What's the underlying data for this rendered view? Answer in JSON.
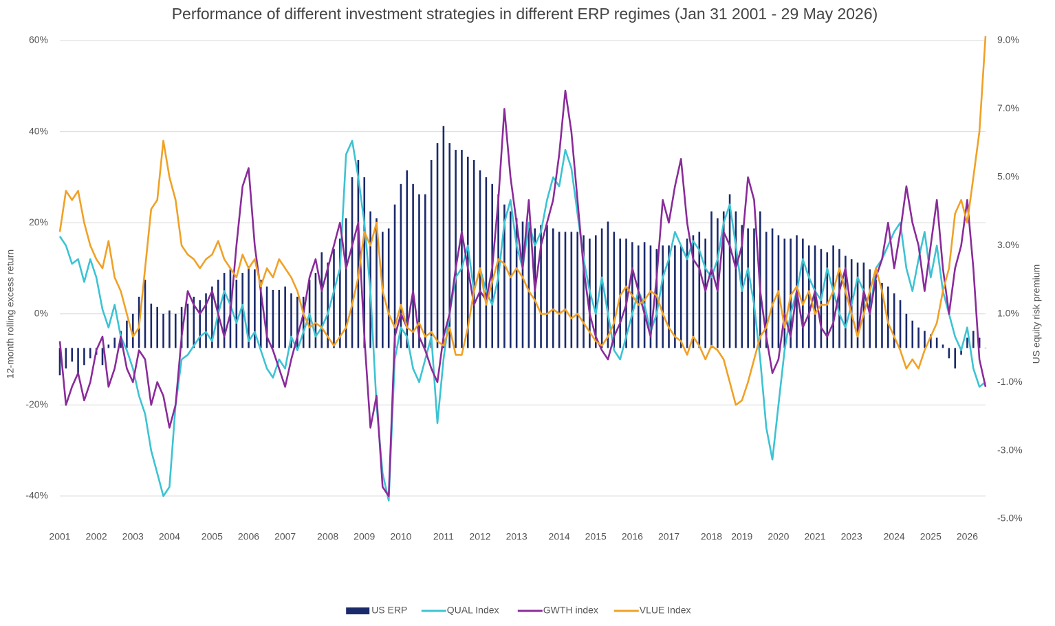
{
  "chart_data": {
    "type": "bar-line",
    "title": "Performance of different investment strategies in different ERP regimes (Jan 31 2001 - 29 May 2026)",
    "y_label": "12-month rolling excess return",
    "y2_label": "US equity risk premium",
    "ylim": [
      -45,
      60
    ],
    "yticks": [
      {
        "value": -40,
        "label": "-40%"
      },
      {
        "value": -20,
        "label": "-20%"
      },
      {
        "value": 0,
        "label": "0%"
      },
      {
        "value": 20,
        "label": "20%"
      },
      {
        "value": 40,
        "label": "40%"
      },
      {
        "value": 60,
        "label": "60%"
      }
    ],
    "y2lim": [
      -5,
      9
    ],
    "y2ticks": [
      {
        "value": -5,
        "label": "-5.0%"
      },
      {
        "value": -3,
        "label": "-3.0%"
      },
      {
        "value": -1,
        "label": "-1.0%"
      },
      {
        "value": 1,
        "label": "1.0%"
      },
      {
        "value": 3,
        "label": "3.0%"
      },
      {
        "value": 5,
        "label": "5.0%"
      },
      {
        "value": 7,
        "label": "7.0%"
      },
      {
        "value": 9,
        "label": "9.0%"
      }
    ],
    "grid": true,
    "legend": "bottom",
    "categories": [
      "2001",
      null,
      null,
      null,
      null,
      null,
      "2002",
      null,
      null,
      null,
      null,
      null,
      "2003",
      null,
      null,
      null,
      null,
      null,
      "2004",
      null,
      null,
      null,
      null,
      null,
      null,
      "2005",
      null,
      null,
      null,
      null,
      null,
      "2006",
      null,
      null,
      null,
      null,
      null,
      "2007",
      null,
      null,
      null,
      null,
      null,
      null,
      "2008",
      null,
      null,
      null,
      null,
      null,
      "2009",
      null,
      null,
      null,
      null,
      null,
      "2010",
      null,
      null,
      null,
      null,
      null,
      null,
      "2011",
      null,
      null,
      null,
      null,
      null,
      "2012",
      null,
      null,
      null,
      null,
      null,
      "2013",
      null,
      null,
      null,
      null,
      null,
      null,
      "2014",
      null,
      null,
      null,
      null,
      null,
      "2015",
      null,
      null,
      null,
      null,
      null,
      "2016",
      null,
      null,
      null,
      null,
      null,
      "2017",
      null,
      null,
      null,
      null,
      null,
      null,
      "2018",
      null,
      null,
      null,
      null,
      "2019",
      null,
      null,
      null,
      null,
      null,
      "2020",
      null,
      null,
      null,
      null,
      null,
      "2021",
      null,
      null,
      null,
      null,
      null,
      "2023",
      null,
      null,
      null,
      null,
      null,
      null,
      "2024",
      null,
      null,
      null,
      null,
      null,
      "2025",
      null,
      null,
      null,
      null,
      null,
      "2026",
      null,
      null,
      null
    ],
    "series": [
      {
        "name": "US ERP",
        "type": "bar",
        "axis": "y2",
        "color": "#1b2a6b",
        "values": [
          -0.8,
          -0.6,
          -0.4,
          -0.8,
          -0.5,
          -0.3,
          -0.2,
          -0.5,
          0.1,
          0.3,
          0.5,
          0.8,
          1.0,
          1.5,
          2.0,
          1.3,
          1.2,
          1.0,
          1.1,
          1.0,
          1.2,
          1.3,
          1.5,
          1.4,
          1.6,
          1.8,
          2.0,
          2.2,
          2.3,
          2.0,
          2.2,
          2.4,
          2.3,
          2.0,
          1.8,
          1.7,
          1.7,
          1.8,
          1.6,
          1.5,
          1.5,
          2.0,
          2.2,
          2.8,
          2.5,
          2.9,
          3.2,
          3.8,
          5.0,
          5.5,
          5.0,
          4.0,
          3.8,
          3.4,
          3.5,
          4.2,
          4.8,
          5.2,
          4.8,
          4.5,
          4.5,
          5.5,
          6.0,
          6.5,
          6.0,
          5.8,
          5.8,
          5.6,
          5.5,
          5.2,
          5.0,
          4.8,
          4.5,
          4.2,
          4.0,
          3.8,
          3.7,
          3.6,
          3.5,
          3.6,
          3.6,
          3.5,
          3.4,
          3.4,
          3.4,
          3.4,
          3.3,
          3.2,
          3.3,
          3.5,
          3.7,
          3.4,
          3.2,
          3.2,
          3.1,
          3.0,
          3.1,
          3.0,
          2.9,
          3.0,
          3.0,
          3.0,
          3.0,
          3.2,
          3.3,
          3.4,
          3.2,
          4.0,
          3.8,
          4.0,
          4.5,
          4.0,
          3.6,
          3.5,
          3.5,
          4.0,
          3.4,
          3.5,
          3.3,
          3.2,
          3.2,
          3.3,
          3.2,
          3.0,
          3.0,
          2.9,
          2.8,
          3.0,
          2.9,
          2.7,
          2.6,
          2.5,
          2.5,
          2.3,
          2.0,
          1.9,
          1.8,
          1.6,
          1.4,
          1.0,
          0.8,
          0.6,
          0.5,
          0.4,
          0.3,
          0.1,
          -0.3,
          -0.6,
          -0.2,
          0.3,
          0.5,
          0.3,
          0.0
        ]
      },
      {
        "name": "QUAL Index",
        "type": "line",
        "color": "#3cc3d3",
        "values": [
          17,
          15,
          11,
          12,
          7,
          12,
          8,
          1,
          -3,
          2,
          -5,
          -8,
          -12,
          -18,
          -22,
          -30,
          -35,
          -40,
          -38,
          -20,
          -10,
          -9,
          -7,
          -5,
          -4,
          -6,
          0,
          5,
          2,
          -2,
          2,
          -6,
          -4,
          -8,
          -12,
          -14,
          -10,
          -12,
          -5,
          -8,
          -4,
          0,
          -5,
          -3,
          0,
          5,
          10,
          35,
          38,
          30,
          20,
          5,
          -20,
          -35,
          -41,
          -10,
          -3,
          -5,
          -12,
          -15,
          -10,
          -5,
          -24,
          -10,
          0,
          8,
          10,
          15,
          5,
          10,
          5,
          2,
          8,
          20,
          25,
          15,
          10,
          20,
          15,
          18,
          25,
          30,
          28,
          36,
          32,
          22,
          12,
          5,
          0,
          8,
          0,
          -8,
          -10,
          -5,
          0,
          5,
          2,
          -4,
          0,
          8,
          12,
          18,
          15,
          12,
          16,
          14,
          10,
          8,
          12,
          20,
          24,
          15,
          5,
          10,
          2,
          -10,
          -25,
          -32,
          -20,
          -8,
          0,
          5,
          12,
          8,
          5,
          3,
          10,
          5,
          0,
          -3,
          2,
          8,
          5,
          0,
          10,
          12,
          15,
          18,
          20,
          10,
          5,
          12,
          18,
          8,
          15,
          5,
          0,
          -5,
          -8,
          -3,
          -12,
          -16,
          -15
        ]
      },
      {
        "name": "GWTH index",
        "type": "line",
        "color": "#8a2b9a",
        "values": [
          -6,
          -20,
          -16,
          -13,
          -19,
          -15,
          -8,
          -5,
          -16,
          -12,
          -5,
          -12,
          -15,
          -8,
          -10,
          -20,
          -15,
          -18,
          -25,
          -20,
          -5,
          5,
          2,
          0,
          2,
          5,
          0,
          -5,
          0,
          15,
          28,
          32,
          15,
          5,
          -5,
          -8,
          -12,
          -16,
          -10,
          -5,
          0,
          8,
          12,
          5,
          10,
          15,
          20,
          10,
          15,
          20,
          -5,
          -25,
          -18,
          -38,
          -40,
          -5,
          0,
          -3,
          5,
          -5,
          -8,
          -12,
          -15,
          -5,
          0,
          10,
          18,
          10,
          2,
          5,
          3,
          10,
          25,
          45,
          30,
          20,
          10,
          25,
          5,
          15,
          20,
          25,
          35,
          49,
          40,
          25,
          10,
          0,
          -5,
          -8,
          -10,
          -5,
          -2,
          2,
          10,
          5,
          0,
          -5,
          8,
          25,
          20,
          28,
          34,
          20,
          12,
          10,
          5,
          10,
          5,
          18,
          15,
          10,
          15,
          30,
          25,
          5,
          -5,
          -13,
          -10,
          0,
          -5,
          5,
          -3,
          0,
          5,
          -3,
          -5,
          -2,
          5,
          10,
          0,
          -5,
          5,
          0,
          8,
          12,
          20,
          10,
          18,
          28,
          20,
          15,
          5,
          15,
          25,
          10,
          0,
          10,
          15,
          25,
          10,
          -10,
          -16
        ]
      },
      {
        "name": "VLUE Index",
        "type": "line",
        "color": "#f0a126",
        "values": [
          18,
          27,
          25,
          27,
          20,
          15,
          12,
          10,
          16,
          8,
          5,
          0,
          -5,
          -3,
          10,
          23,
          25,
          38,
          30,
          25,
          15,
          13,
          12,
          10,
          12,
          13,
          16,
          12,
          10,
          8,
          13,
          10,
          12,
          6,
          10,
          8,
          12,
          10,
          8,
          5,
          0,
          -3,
          -2,
          -3,
          -5,
          -7,
          -5,
          -3,
          2,
          8,
          18,
          15,
          20,
          5,
          0,
          -3,
          2,
          -3,
          -4,
          -2,
          -5,
          -4,
          -6,
          -7,
          -3,
          -9,
          -9,
          -3,
          5,
          10,
          2,
          7,
          12,
          11,
          8,
          10,
          8,
          5,
          3,
          0,
          0,
          1,
          0,
          1,
          -1,
          0,
          -2,
          -4,
          -6,
          -7,
          -5,
          -2,
          4,
          6,
          4,
          2,
          3,
          5,
          4,
          0,
          -3,
          -5,
          -6,
          -9,
          -5,
          -7,
          -10,
          -7,
          -8,
          -10,
          -15,
          -20,
          -19,
          -15,
          -10,
          -5,
          -3,
          2,
          5,
          -3,
          4,
          6,
          2,
          5,
          0,
          2,
          2,
          5,
          10,
          5,
          0,
          -5,
          0,
          5,
          10,
          5,
          -2,
          -5,
          -8,
          -12,
          -10,
          -12,
          -8,
          -5,
          -2,
          5,
          10,
          22,
          25,
          20,
          30,
          40,
          61
        ]
      }
    ]
  }
}
